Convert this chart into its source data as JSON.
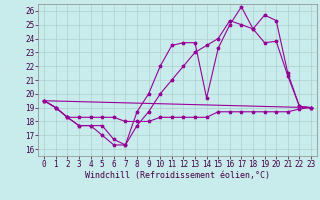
{
  "background_color": "#c8ecec",
  "line_color": "#990099",
  "grid_color": "#b0cece",
  "xlabel": "Windchill (Refroidissement éolien,°C)",
  "xlabel_fontsize": 6.0,
  "xlim": [
    -0.5,
    23.5
  ],
  "ylim": [
    15.5,
    26.5
  ],
  "yticks": [
    16,
    17,
    18,
    19,
    20,
    21,
    22,
    23,
    24,
    25,
    26
  ],
  "xticks": [
    0,
    1,
    2,
    3,
    4,
    5,
    6,
    7,
    8,
    9,
    10,
    11,
    12,
    13,
    14,
    15,
    16,
    17,
    18,
    19,
    20,
    21,
    22,
    23
  ],
  "line1_x": [
    0,
    1,
    2,
    3,
    4,
    5,
    6,
    7,
    8,
    9,
    10,
    11,
    12,
    13,
    14,
    15,
    16,
    17,
    18,
    19,
    20,
    21,
    22,
    23
  ],
  "line1_y": [
    19.5,
    19.0,
    18.3,
    17.7,
    17.7,
    17.0,
    16.3,
    16.3,
    18.7,
    20.0,
    22.0,
    23.5,
    23.7,
    23.7,
    19.7,
    23.3,
    25.0,
    26.3,
    24.7,
    23.7,
    23.8,
    21.3,
    19.1,
    19.0
  ],
  "line2_x": [
    0,
    1,
    2,
    3,
    4,
    5,
    6,
    7,
    8,
    9,
    10,
    11,
    12,
    13,
    14,
    15,
    16,
    17,
    18,
    19,
    20,
    21,
    22,
    23
  ],
  "line2_y": [
    19.5,
    19.0,
    18.3,
    17.7,
    17.7,
    17.7,
    16.7,
    16.3,
    17.7,
    18.7,
    20.0,
    21.0,
    22.0,
    23.0,
    23.5,
    24.0,
    25.3,
    25.0,
    24.7,
    25.7,
    25.3,
    21.5,
    19.1,
    19.0
  ],
  "line3_x": [
    0,
    23
  ],
  "line3_y": [
    19.5,
    19.0
  ],
  "line4_x": [
    0,
    1,
    2,
    3,
    4,
    5,
    6,
    7,
    8,
    9,
    10,
    11,
    12,
    13,
    14,
    15,
    16,
    17,
    18,
    19,
    20,
    21,
    22,
    23
  ],
  "line4_y": [
    19.5,
    19.0,
    18.3,
    18.3,
    18.3,
    18.3,
    18.3,
    18.0,
    18.0,
    18.0,
    18.3,
    18.3,
    18.3,
    18.3,
    18.3,
    18.7,
    18.7,
    18.7,
    18.7,
    18.7,
    18.7,
    18.7,
    18.9,
    19.0
  ],
  "tick_fontsize": 5.5,
  "marker_size": 2.5,
  "linewidth": 0.8
}
